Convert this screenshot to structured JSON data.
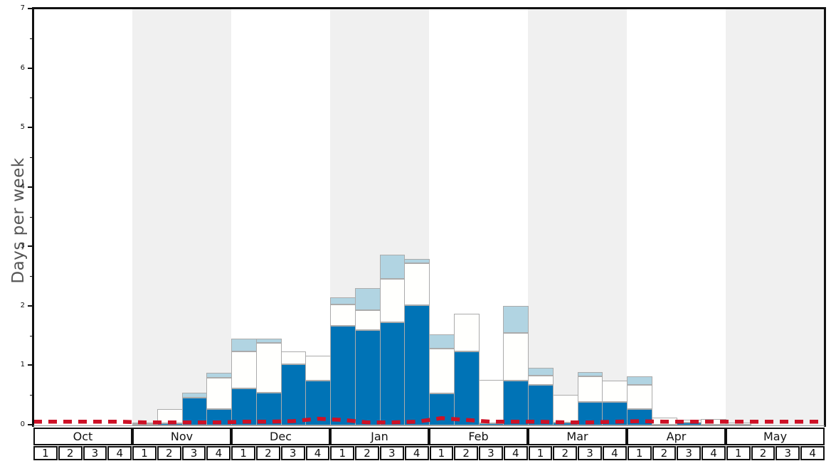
{
  "y_axis": {
    "label": "Days per week",
    "ticks": [
      "0",
      "1",
      "2",
      "3",
      "4",
      "5",
      "6",
      "7"
    ],
    "minor_tick_step": 0.5,
    "max": 7
  },
  "x_axis": {
    "months": [
      {
        "label": "Oct",
        "weeks": [
          "1",
          "2",
          "3",
          "4"
        ],
        "shaded": false
      },
      {
        "label": "Nov",
        "weeks": [
          "1",
          "2",
          "3",
          "4"
        ],
        "shaded": true
      },
      {
        "label": "Dec",
        "weeks": [
          "1",
          "2",
          "3",
          "4"
        ],
        "shaded": false
      },
      {
        "label": "Jan",
        "weeks": [
          "1",
          "2",
          "3",
          "4"
        ],
        "shaded": true
      },
      {
        "label": "Feb",
        "weeks": [
          "1",
          "2",
          "3",
          "4"
        ],
        "shaded": false
      },
      {
        "label": "Mar",
        "weeks": [
          "1",
          "2",
          "3",
          "4"
        ],
        "shaded": true
      },
      {
        "label": "Apr",
        "weeks": [
          "1",
          "2",
          "3",
          "4"
        ],
        "shaded": false
      },
      {
        "label": "May",
        "weeks": [
          "1",
          "2",
          "3",
          "4"
        ],
        "shaded": true
      }
    ]
  },
  "colors": {
    "dark_blue": "#0073b6",
    "white_bar": "#fffffd",
    "light_blue": "#b1d4e2",
    "red_line": "#ce1126",
    "band_gray": "#f0f0f0",
    "bar_border": "#ababab",
    "axis_black": "#111111",
    "baseline_gray": "#999999",
    "ylabel_gray": "#555555"
  },
  "chart_data": {
    "type": "bar",
    "stacked": true,
    "title": "",
    "xlabel": "",
    "ylabel": "Days per week",
    "ylim": [
      0,
      7
    ],
    "grid": false,
    "legend": "none",
    "categories": [
      "Oct w1",
      "Oct w2",
      "Oct w3",
      "Oct w4",
      "Nov w1",
      "Nov w2",
      "Nov w3",
      "Nov w4",
      "Dec w1",
      "Dec w2",
      "Dec w3",
      "Dec w4",
      "Jan w1",
      "Jan w2",
      "Jan w3",
      "Jan w4",
      "Feb w1",
      "Feb w2",
      "Feb w3",
      "Feb w4",
      "Mar w1",
      "Mar w2",
      "Mar w3",
      "Mar w4",
      "Apr w1",
      "Apr w2",
      "Apr w3",
      "Apr w4",
      "May w1",
      "May w2",
      "May w3",
      "May w4"
    ],
    "series": [
      {
        "name": "dark-blue-segment",
        "color_key": "dark_blue",
        "values": [
          0,
          0,
          0,
          0,
          0.02,
          0.04,
          0.47,
          0.28,
          0.62,
          0.55,
          1.03,
          0.76,
          1.67,
          1.6,
          1.74,
          2.02,
          0.54,
          1.24,
          0.04,
          0.75,
          0.68,
          0.05,
          0.4,
          0.4,
          0.27,
          0.01,
          0.05,
          0.01,
          0.01,
          0,
          0,
          0
        ]
      },
      {
        "name": "white-segment",
        "color_key": "white_bar",
        "values": [
          0,
          0,
          0,
          0,
          0.03,
          0.23,
          0.0,
          0.52,
          0.63,
          0.84,
          0.22,
          0.41,
          0.36,
          0.34,
          0.72,
          0.71,
          0.75,
          0.64,
          0.73,
          0.8,
          0.16,
          0.46,
          0.42,
          0.35,
          0.41,
          0.12,
          0.05,
          0.1,
          0.04,
          0,
          0,
          0
        ]
      },
      {
        "name": "light-blue-segment",
        "color_key": "light_blue",
        "values": [
          0,
          0,
          0,
          0,
          0,
          0,
          0.08,
          0.09,
          0.21,
          0.07,
          0,
          0,
          0.13,
          0.37,
          0.41,
          0.07,
          0.24,
          0,
          0,
          0.46,
          0.13,
          0,
          0.08,
          0,
          0.15,
          0,
          0,
          0,
          0,
          0,
          0,
          0
        ]
      }
    ],
    "red_dashed_line": {
      "color_key": "red_line",
      "values": [
        0.05,
        0.05,
        0.05,
        0.05,
        0.04,
        0.04,
        0.04,
        0.04,
        0.05,
        0.05,
        0.06,
        0.1,
        0.08,
        0.04,
        0.04,
        0.05,
        0.11,
        0.08,
        0.05,
        0.05,
        0.05,
        0.04,
        0.04,
        0.05,
        0.06,
        0.05,
        0.05,
        0.05,
        0.05,
        0.05,
        0.05,
        0.05
      ]
    }
  }
}
